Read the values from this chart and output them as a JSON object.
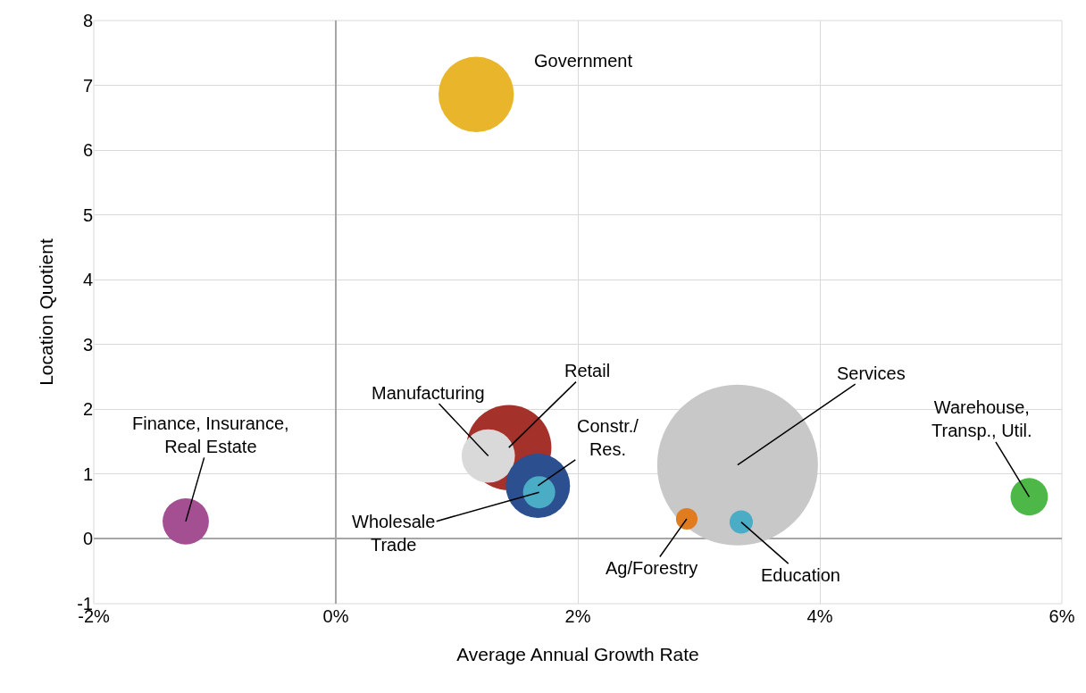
{
  "chart_data": {
    "type": "bubble",
    "xlabel": "Average Annual Growth Rate",
    "ylabel": "Location Quotient",
    "xlim": [
      -2,
      6
    ],
    "ylim": [
      -1,
      8
    ],
    "xticks": [
      {
        "value": -2,
        "label": "-2%"
      },
      {
        "value": 0,
        "label": "0%"
      },
      {
        "value": 2,
        "label": "2%"
      },
      {
        "value": 4,
        "label": "4%"
      },
      {
        "value": 6,
        "label": "6%"
      }
    ],
    "yticks": [
      -1,
      0,
      1,
      2,
      3,
      4,
      5,
      6,
      7,
      8
    ],
    "grid": true,
    "legend": false,
    "series": [
      {
        "name": "Services",
        "color": "#c8c8c8",
        "x": [
          3.32
        ],
        "values": [
          1.14
        ],
        "sizes": [
          1
        ]
      },
      {
        "name": "Government",
        "color": "#e9b52b",
        "x": [
          1.16
        ],
        "values": [
          6.86
        ],
        "sizes": [
          0.22
        ]
      },
      {
        "name": "Finance, Insurance,\nReal Estate",
        "color": "#a34f91",
        "x": [
          -1.24
        ],
        "values": [
          0.27
        ],
        "sizes": [
          0.083
        ]
      },
      {
        "name": "Retail",
        "color": "#a5312b",
        "x": [
          1.43
        ],
        "values": [
          1.41
        ],
        "sizes": [
          0.28
        ]
      },
      {
        "name": "Manufacturing",
        "color": "#d9d9d9",
        "x": [
          1.26
        ],
        "values": [
          1.28
        ],
        "sizes": [
          0.11
        ]
      },
      {
        "name": "Constr./\nRes.",
        "color": "#2b4f8f",
        "x": [
          1.67
        ],
        "values": [
          0.82
        ],
        "sizes": [
          0.16
        ]
      },
      {
        "name": "Wholesale\nTrade",
        "color": "#4bacc6",
        "x": [
          1.68
        ],
        "values": [
          0.72
        ],
        "sizes": [
          0.04
        ]
      },
      {
        "name": "Ag/Forestry",
        "color": "#e07b1f",
        "x": [
          2.9
        ],
        "values": [
          0.31
        ],
        "sizes": [
          0.018
        ]
      },
      {
        "name": "Education",
        "color": "#4bacc6",
        "x": [
          3.35
        ],
        "values": [
          0.26
        ],
        "sizes": [
          0.021
        ]
      },
      {
        "name": "Warehouse,\nTransp., Util.",
        "color": "#4db848",
        "x": [
          5.73
        ],
        "values": [
          0.65
        ],
        "sizes": [
          0.054
        ]
      }
    ]
  }
}
